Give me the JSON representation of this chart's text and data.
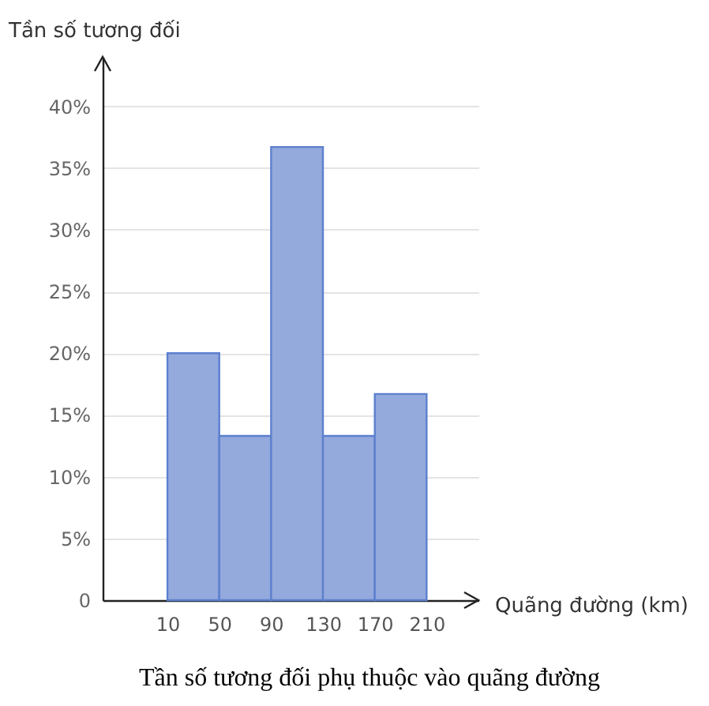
{
  "chart_data": {
    "type": "histogram",
    "title": "Tần số tương đối phụ thuộc vào quãng đường",
    "xlabel": "Quãng đường (km)",
    "ylabel": "Tần số tương đối",
    "bins": [
      10,
      50,
      90,
      130,
      170,
      210
    ],
    "values": [
      20,
      13.3,
      36.7,
      13.3,
      16.7
    ],
    "color": "#94a9dc",
    "xlim": [
      -40,
      250
    ],
    "xticks": [
      10,
      50,
      90,
      130,
      170,
      210
    ],
    "ylim": [
      0,
      44
    ],
    "yticks": [
      {
        "value": 0,
        "label": "0"
      },
      {
        "value": 5,
        "label": "5%"
      },
      {
        "value": 10,
        "label": "10%"
      },
      {
        "value": 15,
        "label": "15%"
      },
      {
        "value": 20,
        "label": "20%"
      },
      {
        "value": 25,
        "label": "25%"
      },
      {
        "value": 30,
        "label": "30%"
      },
      {
        "value": 35,
        "label": "35%"
      },
      {
        "value": 40,
        "label": "40%"
      }
    ],
    "grid": "y"
  }
}
